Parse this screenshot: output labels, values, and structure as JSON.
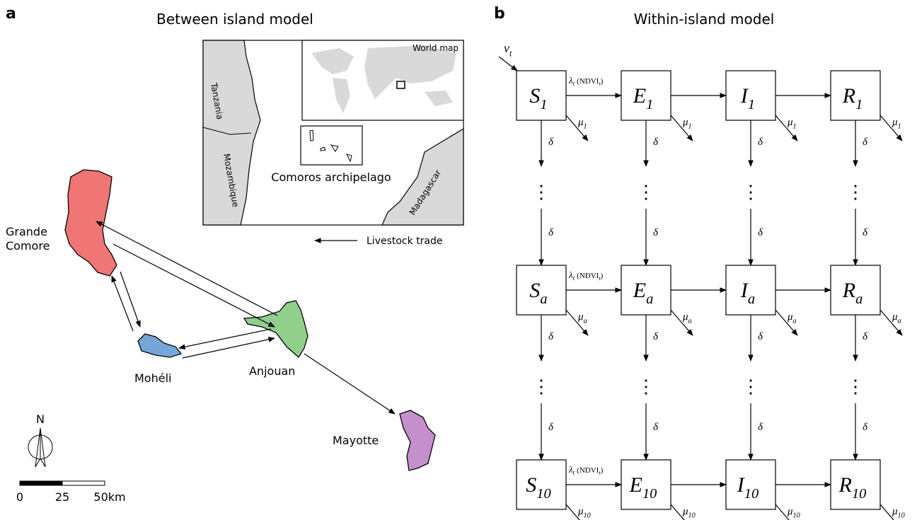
{
  "panel_a": {
    "letter": "a",
    "title": "Between island model",
    "islands": [
      {
        "lines": [
          "Grande",
          "Comore"
        ]
      },
      {
        "lines": [
          "Mohéli"
        ]
      },
      {
        "lines": [
          "Anjouan"
        ]
      },
      {
        "lines": [
          "Mayotte"
        ]
      }
    ],
    "inset": {
      "world_map": "World map",
      "countries": [
        "Tanzania",
        "Mozambique",
        "Madagascar"
      ],
      "archipelago": "Comoros archipelago"
    },
    "legend": "Livestock trade",
    "compass": "N",
    "scale": [
      "0",
      "25",
      "50km"
    ]
  },
  "panel_b": {
    "letter": "b",
    "title": "Within-island model",
    "input": {
      "symbol": "ν",
      "sub": "t"
    },
    "compartments": [
      "S",
      "E",
      "I",
      "R"
    ],
    "rows": [
      "1",
      "a",
      "10"
    ],
    "infection": {
      "symbol": "λ",
      "sub": "t",
      "arg": "(NDVI",
      "arg_sub": "t",
      "close": ")"
    },
    "death": "μ",
    "aging": "δ",
    "ellipsis": "⋮"
  }
}
